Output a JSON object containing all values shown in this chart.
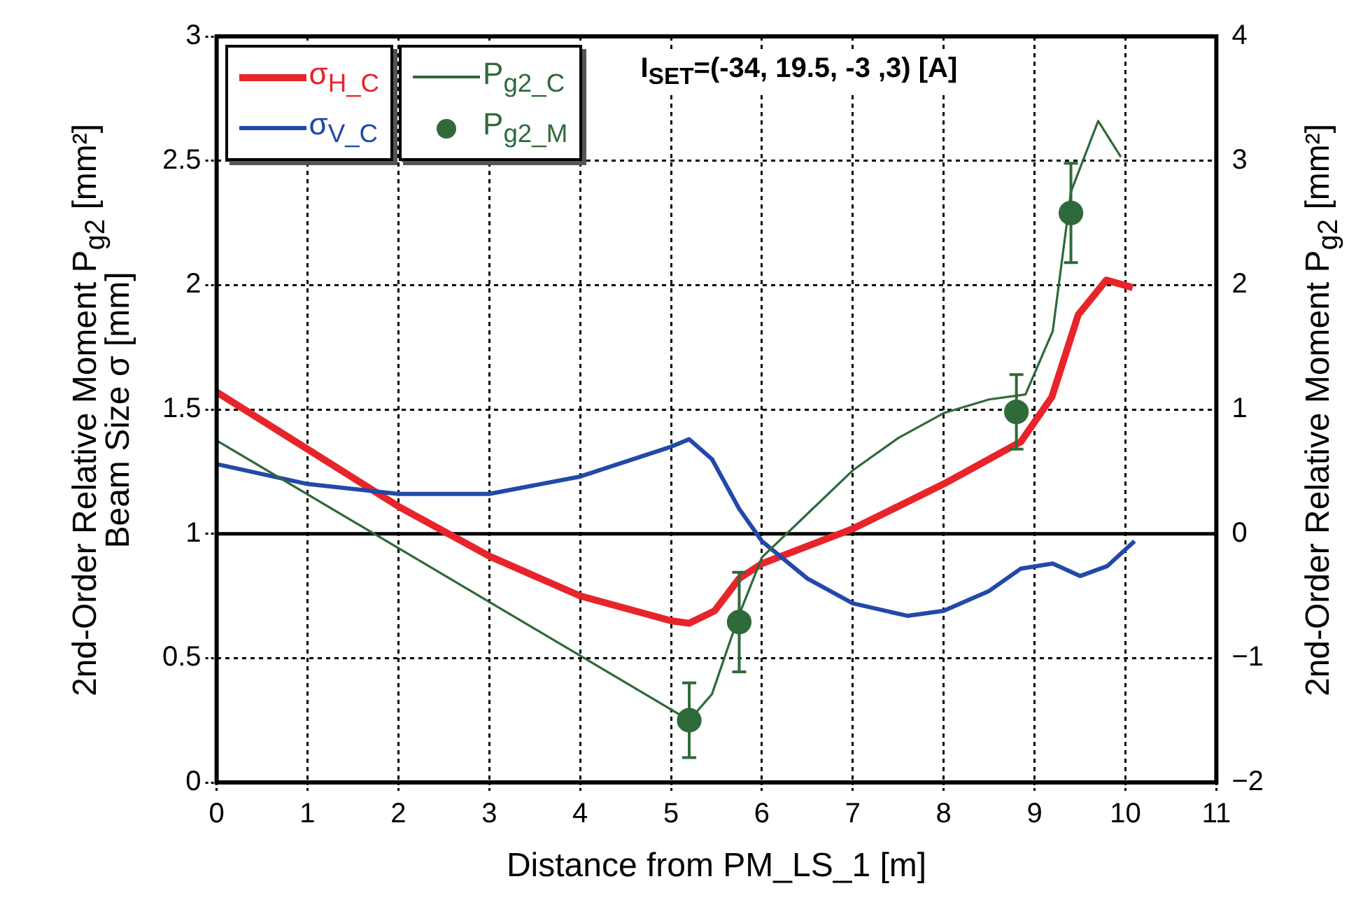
{
  "chart_data": {
    "type": "line",
    "xlabel": "Distance from PM_LS_1 [m]",
    "ylabel": "Beam Size σ [mm]",
    "y2label": "2nd-Order Relative Moment P$_{g2}$ [mm²]",
    "annotations": [
      "I$_{SET}$=(-34, 19.5, -3 ,3) [A]"
    ],
    "xlim": [
      0,
      11
    ],
    "xticks": [
      0,
      1,
      2,
      3,
      4,
      5,
      6,
      7,
      8,
      9,
      10,
      11
    ],
    "ylim": [
      0,
      3
    ],
    "yticks": [
      0,
      0.5,
      1,
      1.5,
      2,
      2.5,
      3
    ],
    "y2lim": [
      -2,
      4
    ],
    "y2ticks": [
      -2,
      -1,
      0,
      1,
      2,
      3,
      4
    ],
    "grid": true,
    "legend": "top left",
    "ref_lines": [
      {
        "axis": "y2",
        "value": 0,
        "color": "#000000"
      }
    ],
    "series": [
      {
        "name": "σ$_{H_C}$",
        "color": "#e8242b",
        "marker": "none",
        "x": [
          0,
          1,
          2,
          3,
          4,
          5,
          5.2,
          5.48,
          5.75,
          6,
          7,
          8,
          8.85,
          9.19,
          9.48,
          9.79,
          10.08
        ],
        "values": [
          1.57,
          1.34,
          1.11,
          0.91,
          0.75,
          0.65,
          0.64,
          0.69,
          0.82,
          0.88,
          1.02,
          1.2,
          1.37,
          1.55,
          1.88,
          2.02,
          1.99
        ]
      },
      {
        "name": "σ$_{V_C}$",
        "color": "#2149a8",
        "marker": "none",
        "x": [
          0,
          1,
          2,
          3,
          4,
          5,
          5.2,
          5.45,
          5.75,
          6,
          6.5,
          7,
          7.6,
          8,
          8.5,
          8.85,
          9.2,
          9.5,
          9.8,
          10.1
        ],
        "values": [
          1.28,
          1.2,
          1.16,
          1.16,
          1.23,
          1.35,
          1.38,
          1.3,
          1.1,
          0.97,
          0.82,
          0.72,
          0.67,
          0.69,
          0.77,
          0.86,
          0.88,
          0.83,
          0.87,
          0.97
        ]
      },
      {
        "name": "P$_{g2_C}$",
        "axis": "y2",
        "color": "#2e6a3a",
        "marker": "none",
        "x": [
          0,
          5.2,
          5.45,
          5.75,
          6,
          6.5,
          7,
          7.5,
          8,
          8.5,
          8.9,
          9.2,
          9.4,
          9.7,
          9.95
        ],
        "values": [
          0.75,
          -1.5,
          -1.29,
          -0.65,
          -0.19,
          0.16,
          0.51,
          0.77,
          0.97,
          1.08,
          1.12,
          1.63,
          2.75,
          3.32,
          3.03
        ]
      },
      {
        "name": "P$_{g2_M}$",
        "type": "scatter",
        "axis": "y2",
        "color": "#2e6a3a",
        "marker": "circle",
        "x": [
          5.2,
          5.75,
          8.8,
          9.4
        ],
        "values": [
          -1.5,
          -0.71,
          0.98,
          2.58
        ],
        "errors": [
          0.3,
          0.4,
          0.3,
          0.4
        ]
      }
    ]
  }
}
